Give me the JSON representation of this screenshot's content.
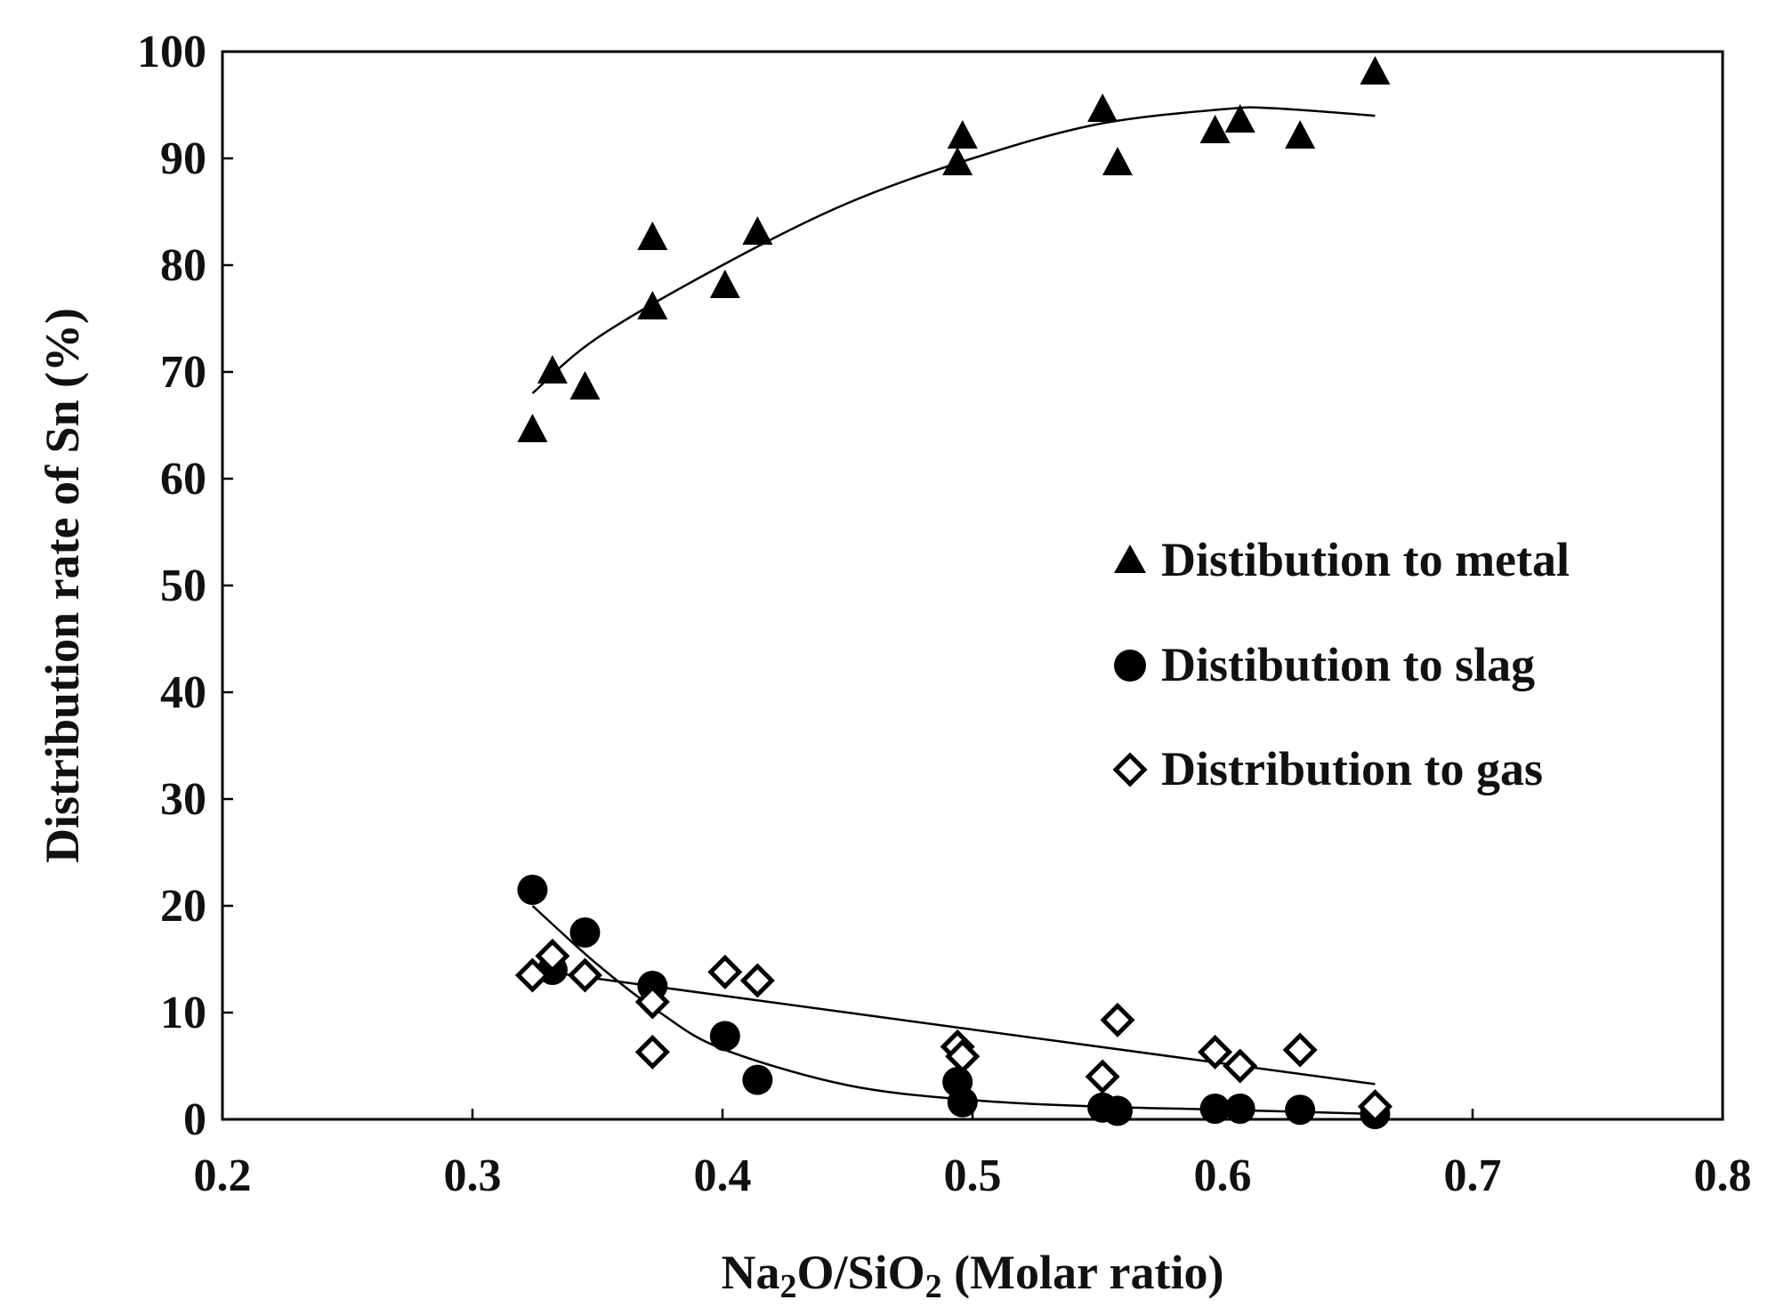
{
  "chart_data": {
    "type": "scatter",
    "title": "",
    "xlabel": "Na2O/SiO2 (Molar ratio)",
    "xlabel_parts": [
      "Na",
      "2",
      "O/SiO",
      "2",
      " (Molar ratio)"
    ],
    "ylabel": "Distribution rate of Sn (%)",
    "xlim": [
      0.2,
      0.8
    ],
    "ylim": [
      0,
      100
    ],
    "x_ticks": [
      "0.2",
      "0.3",
      "0.4",
      "0.5",
      "0.6",
      "0.7",
      "0.8"
    ],
    "y_ticks": [
      "0",
      "10",
      "20",
      "30",
      "40",
      "50",
      "60",
      "70",
      "80",
      "90",
      "100"
    ],
    "legend_position": "center-right",
    "series": [
      {
        "name": "Distibution to metal",
        "marker": "triangle",
        "color": "#000000",
        "points": [
          [
            0.324,
            64.5
          ],
          [
            0.332,
            70.0
          ],
          [
            0.345,
            68.5
          ],
          [
            0.372,
            82.5
          ],
          [
            0.372,
            76.0
          ],
          [
            0.401,
            78.0
          ],
          [
            0.414,
            83.0
          ],
          [
            0.494,
            89.5
          ],
          [
            0.496,
            92.0
          ],
          [
            0.552,
            94.5
          ],
          [
            0.558,
            89.5
          ],
          [
            0.597,
            92.5
          ],
          [
            0.607,
            93.5
          ],
          [
            0.631,
            92.0
          ],
          [
            0.661,
            98.0
          ]
        ],
        "trend": [
          [
            0.324,
            68.0
          ],
          [
            0.35,
            73.2
          ],
          [
            0.4,
            80.0
          ],
          [
            0.45,
            85.8
          ],
          [
            0.5,
            90.0
          ],
          [
            0.55,
            93.2
          ],
          [
            0.6,
            94.6
          ],
          [
            0.62,
            94.7
          ],
          [
            0.661,
            94.0
          ]
        ]
      },
      {
        "name": "Distibution to slag",
        "marker": "circle",
        "color": "#000000",
        "points": [
          [
            0.324,
            21.5
          ],
          [
            0.332,
            14.0
          ],
          [
            0.345,
            17.5
          ],
          [
            0.372,
            12.5
          ],
          [
            0.401,
            7.8
          ],
          [
            0.414,
            3.7
          ],
          [
            0.494,
            3.5
          ],
          [
            0.496,
            1.6
          ],
          [
            0.552,
            1.1
          ],
          [
            0.558,
            0.8
          ],
          [
            0.597,
            1.0
          ],
          [
            0.607,
            1.0
          ],
          [
            0.631,
            0.9
          ],
          [
            0.661,
            0.5
          ]
        ],
        "trend": [
          [
            0.324,
            20.0
          ],
          [
            0.35,
            14.5
          ],
          [
            0.375,
            10.0
          ],
          [
            0.4,
            6.6
          ],
          [
            0.45,
            3.2
          ],
          [
            0.5,
            1.8
          ],
          [
            0.55,
            1.2
          ],
          [
            0.6,
            0.9
          ],
          [
            0.661,
            0.5
          ]
        ]
      },
      {
        "name": "Distribution to gas",
        "marker": "diamond-open",
        "color": "#000000",
        "points": [
          [
            0.324,
            13.5
          ],
          [
            0.332,
            15.3
          ],
          [
            0.345,
            13.5
          ],
          [
            0.372,
            11.0
          ],
          [
            0.372,
            6.3
          ],
          [
            0.401,
            13.8
          ],
          [
            0.414,
            13.0
          ],
          [
            0.494,
            6.8
          ],
          [
            0.496,
            5.9
          ],
          [
            0.552,
            4.0
          ],
          [
            0.558,
            9.3
          ],
          [
            0.597,
            6.3
          ],
          [
            0.607,
            5.0
          ],
          [
            0.631,
            6.5
          ],
          [
            0.661,
            1.2
          ]
        ],
        "trend": [
          [
            0.324,
            14.0
          ],
          [
            0.661,
            3.3
          ]
        ]
      }
    ]
  }
}
